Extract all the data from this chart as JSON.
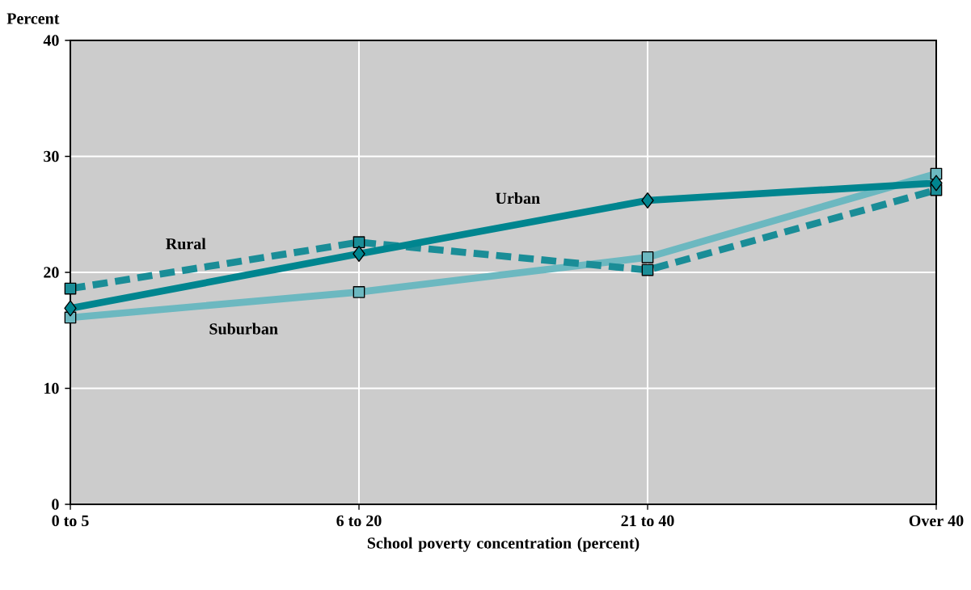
{
  "chart_data": {
    "type": "line",
    "xlabel": "School poverty concentration (percent)",
    "ylabel": "Percent",
    "categories": [
      "0 to 5",
      "6 to 20",
      "21 to 40",
      "Over 40"
    ],
    "series": [
      {
        "name": "Urban",
        "color": "#00858f",
        "values": [
          16.9,
          21.6,
          26.2,
          27.7
        ],
        "marker": "diamond",
        "line_style": "solid"
      },
      {
        "name": "Rural",
        "color": "#1a8d97",
        "values": [
          18.6,
          22.6,
          20.2,
          27.1
        ],
        "marker": "square",
        "line_style": "dashed"
      },
      {
        "name": "Suburban",
        "color": "#6cb8c0",
        "values": [
          16.1,
          18.3,
          21.3,
          28.5
        ],
        "marker": "square",
        "line_style": "solid"
      }
    ],
    "ylim": [
      0,
      40
    ],
    "yticks": [
      0,
      10,
      20,
      30,
      40
    ],
    "grid": true
  }
}
